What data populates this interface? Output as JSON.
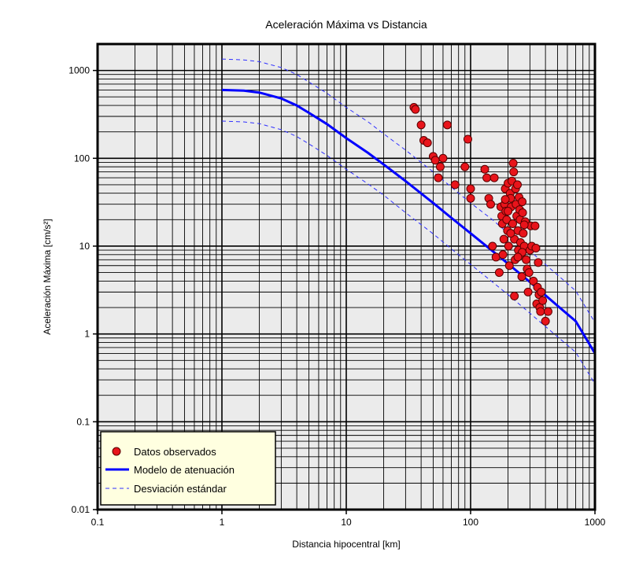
{
  "chart_data": {
    "type": "scatter",
    "title": "Aceleración Máxima vs Distancia",
    "xlabel": "Distancia hipocentral [km]",
    "ylabel": "Aceleración Máxima [cm/s²]",
    "x_scale": "log",
    "y_scale": "log",
    "xlim": [
      0.1,
      1000
    ],
    "ylim": [
      0.01,
      2000
    ],
    "x_ticks": [
      0.1,
      1,
      10,
      100,
      1000
    ],
    "x_tick_labels": [
      "0.1",
      "1",
      "10",
      "100",
      "1000"
    ],
    "y_ticks": [
      0.01,
      0.1,
      1,
      10,
      100,
      1000
    ],
    "y_tick_labels": [
      "0.01",
      "0.1",
      "1",
      "10",
      "100",
      "1000"
    ],
    "grid": true,
    "legend_position": "bottom-left",
    "colors": {
      "background": "#ebebeb",
      "grid": "#000000",
      "points": "#e8141b",
      "point_edge": "#5a0000",
      "model": "#0000ff",
      "deviation": "#2f2fff",
      "legend_bg": "#ffffe0"
    },
    "series": [
      {
        "name": "Datos observados",
        "kind": "scatter",
        "points": [
          [
            35,
            380
          ],
          [
            36,
            360
          ],
          [
            40,
            240
          ],
          [
            42,
            160
          ],
          [
            45,
            150
          ],
          [
            50,
            105
          ],
          [
            52,
            95
          ],
          [
            55,
            60
          ],
          [
            57,
            80
          ],
          [
            60,
            100
          ],
          [
            65,
            240
          ],
          [
            75,
            50
          ],
          [
            90,
            80
          ],
          [
            95,
            165
          ],
          [
            100,
            45
          ],
          [
            100,
            35
          ],
          [
            130,
            75
          ],
          [
            135,
            60
          ],
          [
            140,
            35
          ],
          [
            145,
            30
          ],
          [
            150,
            10
          ],
          [
            155,
            60
          ],
          [
            160,
            7.5
          ],
          [
            170,
            5
          ],
          [
            175,
            28
          ],
          [
            178,
            22
          ],
          [
            180,
            18
          ],
          [
            182,
            8
          ],
          [
            185,
            12
          ],
          [
            188,
            30
          ],
          [
            190,
            45
          ],
          [
            192,
            25
          ],
          [
            195,
            20
          ],
          [
            198,
            15
          ],
          [
            200,
            52
          ],
          [
            202,
            10
          ],
          [
            205,
            6
          ],
          [
            208,
            40
          ],
          [
            210,
            35
          ],
          [
            212,
            28
          ],
          [
            215,
            55
          ],
          [
            218,
            18
          ],
          [
            220,
            88
          ],
          [
            222,
            70
          ],
          [
            225,
            12
          ],
          [
            228,
            7
          ],
          [
            230,
            45
          ],
          [
            232,
            30
          ],
          [
            235,
            22
          ],
          [
            238,
            50
          ],
          [
            240,
            15
          ],
          [
            242,
            9
          ],
          [
            245,
            36
          ],
          [
            248,
            26
          ],
          [
            250,
            20
          ],
          [
            252,
            11
          ],
          [
            255,
            8
          ],
          [
            258,
            4.5
          ],
          [
            260,
            32
          ],
          [
            262,
            24
          ],
          [
            265,
            14
          ],
          [
            270,
            10
          ],
          [
            275,
            19
          ],
          [
            280,
            7
          ],
          [
            285,
            5.5
          ],
          [
            290,
            3
          ],
          [
            295,
            5
          ],
          [
            300,
            9
          ],
          [
            305,
            17
          ],
          [
            310,
            10
          ],
          [
            320,
            4
          ],
          [
            330,
            17
          ],
          [
            335,
            9.5
          ],
          [
            340,
            2.2
          ],
          [
            345,
            3.4
          ],
          [
            350,
            6.5
          ],
          [
            355,
            2.8
          ],
          [
            360,
            2.0
          ],
          [
            365,
            1.8
          ],
          [
            370,
            3.0
          ],
          [
            380,
            2.4
          ],
          [
            400,
            1.4
          ],
          [
            420,
            1.8
          ],
          [
            225,
            2.7
          ],
          [
            260,
            8.5
          ],
          [
            200,
            25
          ],
          [
            210,
            14
          ],
          [
            240,
            7.5
          ],
          [
            270,
            17.5
          ],
          [
            190,
            34
          ]
        ]
      },
      {
        "name": "Modelo de atenuación",
        "kind": "line",
        "points": [
          [
            1,
            600
          ],
          [
            1.5,
            590
          ],
          [
            2,
            560
          ],
          [
            3,
            480
          ],
          [
            4,
            400
          ],
          [
            5,
            330
          ],
          [
            7,
            245
          ],
          [
            10,
            170
          ],
          [
            15,
            115
          ],
          [
            20,
            85
          ],
          [
            30,
            55
          ],
          [
            50,
            31
          ],
          [
            70,
            21
          ],
          [
            100,
            14
          ],
          [
            150,
            8.8
          ],
          [
            200,
            6.3
          ],
          [
            300,
            3.9
          ],
          [
            500,
            2.1
          ],
          [
            700,
            1.4
          ],
          [
            1000,
            0.6
          ]
        ]
      },
      {
        "name": "Desviación estándar",
        "kind": "dashed-line-upper",
        "points": [
          [
            1,
            1350
          ],
          [
            1.5,
            1320
          ],
          [
            2,
            1260
          ],
          [
            3,
            1080
          ],
          [
            4,
            900
          ],
          [
            5,
            740
          ],
          [
            7,
            550
          ],
          [
            10,
            380
          ],
          [
            15,
            260
          ],
          [
            20,
            190
          ],
          [
            30,
            124
          ],
          [
            50,
            70
          ],
          [
            70,
            47
          ],
          [
            100,
            31
          ],
          [
            150,
            20
          ],
          [
            200,
            14
          ],
          [
            300,
            8.8
          ],
          [
            500,
            4.7
          ],
          [
            700,
            3.1
          ],
          [
            1000,
            1.35
          ]
        ]
      },
      {
        "name": "Desviación estándar",
        "kind": "dashed-line-lower",
        "points": [
          [
            1,
            265
          ],
          [
            1.5,
            260
          ],
          [
            2,
            248
          ],
          [
            3,
            212
          ],
          [
            4,
            177
          ],
          [
            5,
            146
          ],
          [
            7,
            108
          ],
          [
            10,
            75
          ],
          [
            15,
            51
          ],
          [
            20,
            38
          ],
          [
            30,
            24
          ],
          [
            50,
            13.8
          ],
          [
            70,
            9.3
          ],
          [
            100,
            6.2
          ],
          [
            150,
            3.9
          ],
          [
            200,
            2.8
          ],
          [
            300,
            1.72
          ],
          [
            500,
            0.93
          ],
          [
            700,
            0.62
          ],
          [
            1000,
            0.27
          ]
        ]
      }
    ],
    "legend": [
      {
        "label": "Datos observados",
        "marker": "dot"
      },
      {
        "label": "Modelo de atenuación",
        "marker": "solid"
      },
      {
        "label": "Desviación estándar",
        "marker": "dashed"
      }
    ]
  }
}
